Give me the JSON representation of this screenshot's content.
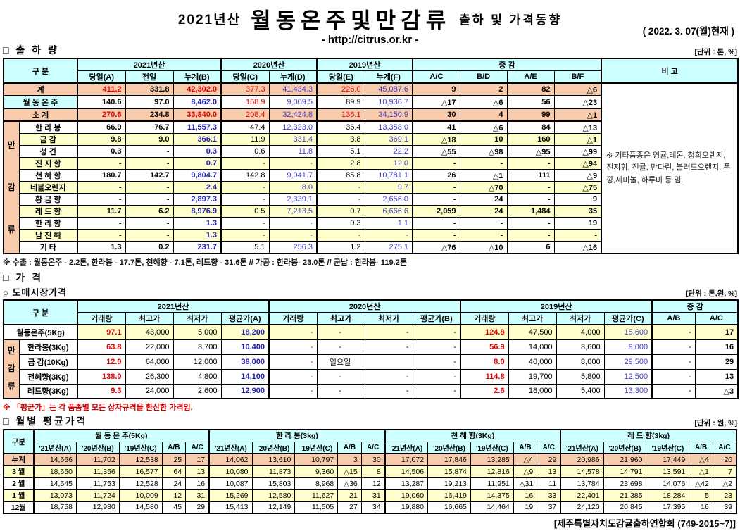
{
  "header": {
    "year_label": "2021년산",
    "title": "월동온주및만감류",
    "subtitle": "출하 및 가격동향",
    "url": "- http://citrus.or.kr -",
    "date": "( 2022. 3. 07(월)현재 )"
  },
  "colors": {
    "header_bg": "#CCFFFF",
    "total_row_bg": "#F8CBAD",
    "alt_row_bg": "#FFFFCC",
    "red_text": "#e10000",
    "blue_text": "#1f1fb4"
  },
  "shipment": {
    "section_title": "□ 출 하 량",
    "unit": "[단위 : 톤, %]",
    "header": {
      "gubun": "구      분",
      "y2021": "2021년산",
      "y2020": "2020년산",
      "y2019": "2019년산",
      "change": "증        감",
      "note_col": "비 고",
      "cols": [
        "당일(A)",
        "전일",
        "누계(B)",
        "당일(C)",
        "누계(D)",
        "당일(E)",
        "누계(F)",
        "A/C",
        "B/D",
        "A/E",
        "B/F"
      ]
    },
    "side_label": "만감류",
    "note": "※ 기타품종은 영귤,레몬, 청희오렌지, 진지휘, 진귤, 만다린, 블러드오렌지, 폰깡,세미놀, 하루미 등 임.",
    "rows": [
      {
        "label": "계",
        "type": "total",
        "shade": "t",
        "cells": [
          "411.2",
          "331.8",
          "42,302.0",
          "377.3",
          "41,434.3",
          "226.0",
          "45,087.6",
          "9",
          "2",
          "82",
          "△6"
        ]
      },
      {
        "label": "월 동 온 주",
        "type": "onju",
        "shade": "w",
        "cells": [
          "140.6",
          "97.0",
          "8,462.0",
          "168.9",
          "9,009.5",
          "89.9",
          "10,936.7",
          "△17",
          "△6",
          "56",
          "△23"
        ]
      },
      {
        "label": "소    계",
        "type": "total",
        "shade": "t",
        "cells": [
          "270.6",
          "234.8",
          "33,840.0",
          "208.4",
          "32,424.8",
          "136.1",
          "34,150.9",
          "30",
          "4",
          "99",
          "△1"
        ]
      },
      {
        "label": "한 라 봉",
        "type": "item",
        "shade": "w",
        "cells": [
          "66.9",
          "76.7",
          "11,557.3",
          "47.4",
          "12,323.0",
          "36.4",
          "13,358.0",
          "41",
          "△6",
          "84",
          "△13"
        ]
      },
      {
        "label": "금    감",
        "type": "item",
        "shade": "y",
        "cells": [
          "9.8",
          "9.0",
          "366.1",
          "11.9",
          "331.4",
          "3.8",
          "369.1",
          "△18",
          "10",
          "160",
          "△1"
        ]
      },
      {
        "label": "청    견",
        "type": "item",
        "shade": "w",
        "cells": [
          "0.3",
          "-",
          "0.3",
          "0.6",
          "11.8",
          "5.1",
          "22.2",
          "△55",
          "△98",
          "△95",
          "△99"
        ]
      },
      {
        "label": "진 지 향",
        "type": "item",
        "shade": "y",
        "cells": [
          "-",
          "-",
          "0.7",
          "-",
          "-",
          "2.8",
          "12.0",
          "-",
          "-",
          "-",
          "△94"
        ]
      },
      {
        "label": "천 혜 향",
        "type": "item",
        "shade": "w",
        "cells": [
          "180.7",
          "142.7",
          "9,804.7",
          "142.8",
          "9,941.7",
          "85.8",
          "10,781.1",
          "26",
          "△1",
          "111",
          "△9"
        ]
      },
      {
        "label": "네블오렌지",
        "type": "item",
        "shade": "y",
        "cells": [
          "-",
          "-",
          "2.4",
          "-",
          "8.0",
          "-",
          "9.7",
          "-",
          "△70",
          "-",
          "△75"
        ]
      },
      {
        "label": "황 금 향",
        "type": "item",
        "shade": "w",
        "cells": [
          "-",
          "-",
          "2,897.3",
          "-",
          "2,339.1",
          "-",
          "2,656.0",
          "-",
          "24",
          "-",
          "9"
        ]
      },
      {
        "label": "레 드 향",
        "type": "item",
        "shade": "y",
        "cells": [
          "11.7",
          "6.2",
          "8,976.9",
          "0.5",
          "7,213.5",
          "0.7",
          "6,666.6",
          "2,059",
          "24",
          "1,484",
          "35"
        ]
      },
      {
        "label": "한 라 향",
        "type": "item",
        "shade": "w",
        "cells": [
          "-",
          "-",
          "1.3",
          "-",
          "-",
          "0.3",
          "1.1",
          "-",
          "-",
          "-",
          "19"
        ]
      },
      {
        "label": "남 진 해",
        "type": "item",
        "shade": "y",
        "cells": [
          "-",
          "-",
          "1.3",
          "-",
          "-",
          "-",
          "-",
          "-",
          "-",
          "-",
          "-"
        ]
      },
      {
        "label": "기    타",
        "type": "item",
        "shade": "w",
        "cells": [
          "1.3",
          "0.2",
          "231.7",
          "5.1",
          "256.3",
          "1.2",
          "275.1",
          "△76",
          "△10",
          "6",
          "△16"
        ]
      }
    ],
    "footnote": "※ 수출 : 월동온주 - 2.2톤, 한라봉 - 17.7톤,  천혜향 - 7.1톤, 레드향 - 31.6톤 // 가공 : 한라봉- 23.0톤 // 군납 : 한라봉- 119.2톤"
  },
  "price": {
    "section_title": "□ 가    격",
    "sub_title": "○ 도매시장가격",
    "unit": "[단위 : 톤,원, %]",
    "header": {
      "gubun": "구      분",
      "y2021": "2021년산",
      "y2020": "2020년산",
      "y2019": "2019년산",
      "change": "증  감",
      "cols": [
        "거래량",
        "최고가",
        "최저가",
        "평균가(A)",
        "거래량",
        "최고가",
        "최저가",
        "평균가(B)",
        "거래량",
        "최고가",
        "최저가",
        "평균가(C)",
        "A/B",
        "A/C"
      ]
    },
    "side_label": "만감류",
    "rows": [
      {
        "label": "월동온주(5Kg)",
        "type": "onju",
        "cells": [
          "97.1",
          "43,000",
          "5,000",
          "18,200",
          "-",
          "-",
          "-",
          "-",
          "124.8",
          "47,500",
          "4,000",
          "15,600",
          "-",
          "17"
        ]
      },
      {
        "label": "한라봉(3Kg)",
        "type": "item",
        "cells": [
          "63.8",
          "22,000",
          "3,700",
          "10,400",
          "-",
          "-",
          "-",
          "-",
          "56.9",
          "14,000",
          "3,600",
          "9,000",
          "-",
          "16"
        ]
      },
      {
        "label": "금 감(10Kg)",
        "type": "item",
        "cells": [
          "12.0",
          "64,000",
          "12,000",
          "38,000",
          "-",
          "일요일",
          "",
          "-",
          "8.0",
          "40,000",
          "8,000",
          "29,500",
          "-",
          "29"
        ]
      },
      {
        "label": "천혜향(3Kg)",
        "type": "item",
        "cells": [
          "138.0",
          "26,300",
          "4,800",
          "14,100",
          "-",
          "-",
          "-",
          "-",
          "114.8",
          "19,700",
          "5,800",
          "12,500",
          "-",
          "13"
        ]
      },
      {
        "label": "레드향(3Kg)",
        "type": "item",
        "cells": [
          "9.3",
          "24,000",
          "2,600",
          "12,900",
          "-",
          "-",
          "-",
          "-",
          "2.6",
          "18,000",
          "5,400",
          "13,300",
          "-",
          "△3"
        ]
      }
    ],
    "note": "※  「평균가」는 각 품종별 모든 상자규격을 환산한 가격임."
  },
  "monthly": {
    "section_title": "□ 월별 평균가격",
    "unit": "[단위 : 원, %]",
    "header": {
      "gubun": "구분",
      "groups": [
        "월 동 온 주(5Kg)",
        "한 라  봉(3kg)",
        "천 혜 향(3Kg)",
        "레 드 향(3kg)"
      ],
      "cols": [
        "'21년산(A)",
        "'20년산(B)",
        "'19년산(C)",
        "A/B",
        "A/C"
      ]
    },
    "rows": [
      {
        "label": "누계",
        "type": "total",
        "shade": "t",
        "cells": [
          "14,666",
          "11,702",
          "12,538",
          "25",
          "17",
          "14,062",
          "13,610",
          "10,797",
          "3",
          "30",
          "17,072",
          "17,846",
          "13,285",
          "△4",
          "29",
          "20,986",
          "21,960",
          "17,449",
          "△4",
          "20"
        ]
      },
      {
        "label": "3 월",
        "type": "month",
        "shade": "y",
        "cells": [
          "18,650",
          "11,356",
          "16,577",
          "64",
          "13",
          "10,080",
          "11,873",
          "9,360",
          "△15",
          "8",
          "14,506",
          "15,874",
          "12,816",
          "△9",
          "13",
          "14,578",
          "14,791",
          "13,591",
          "△1",
          "7"
        ]
      },
      {
        "label": "2 월",
        "type": "month",
        "shade": "w",
        "cells": [
          "14,545",
          "11,753",
          "12,528",
          "24",
          "16",
          "10,087",
          "15,803",
          "8,968",
          "△36",
          "12",
          "13,287",
          "19,213",
          "11,951",
          "△31",
          "11",
          "13,784",
          "23,698",
          "14,076",
          "△42",
          "△2"
        ]
      },
      {
        "label": "1 월",
        "type": "month",
        "shade": "y",
        "cells": [
          "13,073",
          "11,724",
          "10,009",
          "12",
          "31",
          "15,269",
          "12,580",
          "11,627",
          "21",
          "31",
          "19,060",
          "16,419",
          "14,375",
          "16",
          "33",
          "22,401",
          "21,385",
          "18,284",
          "5",
          "23"
        ]
      },
      {
        "label": "12월",
        "type": "month",
        "shade": "w",
        "cells": [
          "18,758",
          "12,980",
          "14,580",
          "45",
          "29",
          "15,413",
          "12,149",
          "11,505",
          "27",
          "34",
          "19,880",
          "16,665",
          "14,464",
          "19",
          "37",
          "24,120",
          "20,845",
          "17,395",
          "16",
          "39"
        ]
      }
    ]
  },
  "footer": "[제주특별자치도감귤출하연합회 (749-2015~7)]"
}
